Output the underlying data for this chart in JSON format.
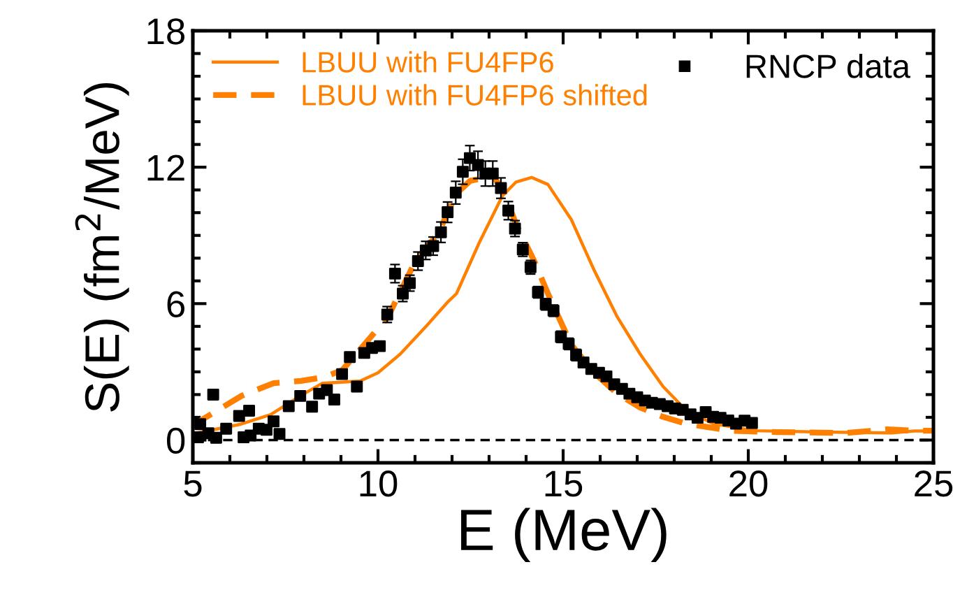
{
  "chart_data": {
    "type": "line",
    "xlabel": "E (MeV)",
    "ylabel": "S(E) (fm$^{2}$/MeV)",
    "xlim": [
      5,
      25
    ],
    "xticks": [
      5,
      10,
      15,
      20,
      25
    ],
    "ylim": [
      -1,
      18
    ],
    "yticks": [
      0,
      6,
      12,
      18
    ],
    "grid": false,
    "legend": "top",
    "ref_lines": [
      {
        "axis": "y",
        "value": 0,
        "color": "#000000",
        "line_style": "dashed"
      }
    ],
    "series": [
      {
        "name": "LBUU with FU4FP6",
        "color": "#ff8000",
        "line_style": "solid",
        "marker": "none",
        "x": [
          5.0,
          5.07,
          6.3,
          7.1,
          7.9,
          8.5,
          9.15,
          9.52,
          10.0,
          10.6,
          11.3,
          11.9,
          12.12,
          12.74,
          13.36,
          13.73,
          14.15,
          14.59,
          15.22,
          15.84,
          16.46,
          17.08,
          17.7,
          18.31,
          19.05,
          20.17,
          22.0,
          23.88,
          24.48,
          25.0
        ],
        "values": [
          0.15,
          0.3,
          0.7,
          1.12,
          1.94,
          2.5,
          2.56,
          2.6,
          2.96,
          3.78,
          5.0,
          6.1,
          6.44,
          8.7,
          10.74,
          11.35,
          11.55,
          11.24,
          9.7,
          7.46,
          5.42,
          3.78,
          2.35,
          1.33,
          0.72,
          0.41,
          0.35,
          0.31,
          0.4,
          0.4
        ]
      },
      {
        "name": "LBUU with FU4FP6 shifted",
        "color": "#ff8000",
        "line_style": "dashed",
        "marker": "none",
        "x": [
          5.0,
          5.07,
          5.69,
          6.31,
          7.18,
          7.92,
          8.54,
          9.03,
          9.52,
          10.27,
          11.01,
          11.63,
          12.12,
          12.49,
          13.11,
          13.36,
          13.73,
          14.22,
          14.59,
          15.22,
          15.84,
          16.46,
          17.08,
          17.7,
          18.31,
          19.55,
          20.79,
          22.64,
          23.76,
          24.48,
          25.0
        ],
        "values": [
          0.55,
          0.72,
          1.33,
          1.94,
          2.5,
          2.6,
          2.76,
          3.07,
          3.99,
          5.42,
          7.87,
          9.1,
          10.84,
          11.4,
          11.6,
          11.04,
          9.5,
          7.87,
          6.44,
          4.19,
          2.96,
          2.04,
          1.43,
          1.02,
          0.72,
          0.41,
          0.35,
          0.31,
          0.47,
          0.41,
          0.41
        ]
      },
      {
        "name": "RNCP data",
        "type": "scatter",
        "color": "#000000",
        "marker": "square",
        "x": [
          5.14,
          5.2,
          5.42,
          5.55,
          5.63,
          5.9,
          6.25,
          6.37,
          6.52,
          6.56,
          6.78,
          6.99,
          7.18,
          7.34,
          7.59,
          7.9,
          8.22,
          8.41,
          8.62,
          8.82,
          9.03,
          9.24,
          9.43,
          9.63,
          9.84,
          10.05,
          10.25,
          10.46,
          10.67,
          10.86,
          11.08,
          11.29,
          11.49,
          11.7,
          11.88,
          12.1,
          12.29,
          12.48,
          12.7,
          12.9,
          13.1,
          13.32,
          13.52,
          13.7,
          13.91,
          14.12,
          14.32,
          14.53,
          14.74,
          14.94,
          15.15,
          15.35,
          15.55,
          15.76,
          15.97,
          16.17,
          16.38,
          16.59,
          16.79,
          17.0,
          17.21,
          17.4,
          17.61,
          17.82,
          18.02,
          18.23,
          18.44,
          18.63,
          18.85,
          19.05,
          19.25,
          19.46,
          19.67,
          19.9,
          20.1
        ],
        "values": [
          0.12,
          0.7,
          0.3,
          2.0,
          0.1,
          0.5,
          1.06,
          0.12,
          1.29,
          0.2,
          0.5,
          0.45,
          0.82,
          0.27,
          1.49,
          1.94,
          1.47,
          2.04,
          2.2,
          1.78,
          2.9,
          3.65,
          2.35,
          3.83,
          4.05,
          4.13,
          5.52,
          7.32,
          6.44,
          6.9,
          7.87,
          8.34,
          8.53,
          9.14,
          10.02,
          10.88,
          11.8,
          12.4,
          12.1,
          11.72,
          11.72,
          11.08,
          10.09,
          9.3,
          8.38,
          7.6,
          6.5,
          5.97,
          5.69,
          4.54,
          4.23,
          3.74,
          3.41,
          3.13,
          2.96,
          2.8,
          2.45,
          2.25,
          2.04,
          1.88,
          1.74,
          1.64,
          1.58,
          1.49,
          1.39,
          1.33,
          1.13,
          0.98,
          1.23,
          1.02,
          0.98,
          0.86,
          0.72,
          0.85,
          0.75
        ],
        "errors": [
          null,
          null,
          null,
          null,
          null,
          null,
          null,
          null,
          null,
          null,
          null,
          null,
          null,
          null,
          null,
          null,
          null,
          null,
          null,
          null,
          null,
          null,
          null,
          null,
          null,
          null,
          0.35,
          0.4,
          0.35,
          0.35,
          0.4,
          0.4,
          0.4,
          0.45,
          0.45,
          0.5,
          0.55,
          0.55,
          0.6,
          0.55,
          0.55,
          0.45,
          0.4,
          0.35,
          0.3,
          0.3,
          0.25,
          0.25,
          0.25,
          0.25,
          0.25,
          0.25,
          0.2,
          0.2,
          0.2,
          0.2,
          0.2,
          0.2,
          0.2,
          0.2,
          0.2,
          0.2,
          0.2,
          0.2,
          0.2,
          0.2,
          0.2,
          0.2,
          0.2,
          0.2,
          0.2,
          0.2,
          0.2,
          0.2,
          0.2
        ]
      }
    ]
  }
}
